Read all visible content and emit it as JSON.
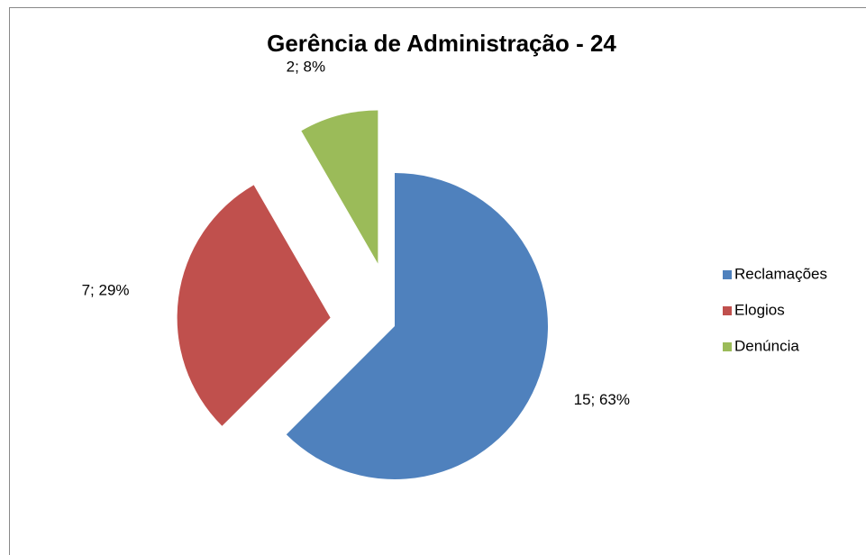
{
  "chart_data": {
    "type": "pie",
    "title": "Gerência de Administração  - 24",
    "categories": [
      "Reclamações",
      "Elogios",
      "Denúncia"
    ],
    "values": [
      15,
      7,
      2
    ],
    "value_labels": [
      "15; 63%",
      "7; 29%",
      "2; 8%"
    ],
    "colors": [
      "#4f81bd",
      "#c0504d",
      "#9bbb59"
    ],
    "legend": "right"
  }
}
